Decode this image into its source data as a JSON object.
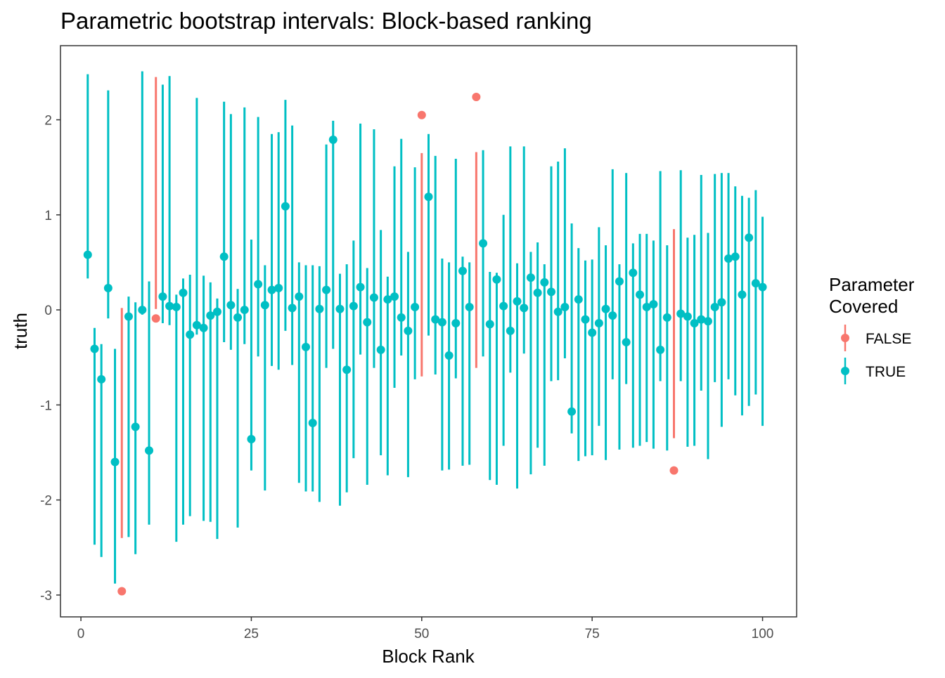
{
  "chart_data": {
    "type": "scatter",
    "title": "Parametric bootstrap intervals: Block-based ranking",
    "xlabel": "Block Rank",
    "ylabel": "truth",
    "xlim": [
      -3,
      105
    ],
    "ylim": [
      -3.23,
      2.78
    ],
    "x_ticks": [
      0,
      25,
      50,
      75,
      100
    ],
    "x_tick_labels": [
      "0",
      "25",
      "50",
      "75",
      "100"
    ],
    "y_ticks": [
      -3,
      -2,
      -1,
      0,
      1,
      2
    ],
    "y_tick_labels": [
      "-3",
      "-2",
      "-1",
      "0",
      "1",
      "2"
    ],
    "grid": false,
    "legend": {
      "title_lines": [
        "Parameter",
        "Covered"
      ],
      "placement": "right",
      "entries": [
        {
          "label": "FALSE",
          "color": "#F8766D"
        },
        {
          "label": "TRUE",
          "color": "#00BFC4"
        }
      ]
    },
    "uncovered_ranks": [
      6,
      11,
      50,
      58,
      87
    ],
    "truth": [
      0.58,
      -0.41,
      -0.73,
      0.23,
      -1.6,
      -2.96,
      -0.07,
      -1.23,
      0.0,
      -1.48,
      -0.09,
      0.14,
      0.04,
      0.03,
      0.18,
      -0.26,
      -0.16,
      -0.19,
      -0.06,
      -0.02,
      0.56,
      0.05,
      -0.08,
      0.0,
      -1.36,
      0.27,
      0.05,
      0.21,
      0.23,
      1.09,
      0.02,
      0.14,
      -0.39,
      -1.19,
      0.01,
      0.21,
      1.79,
      0.01,
      -0.63,
      0.04,
      0.24,
      -0.13,
      0.13,
      -0.42,
      0.11,
      0.14,
      -0.08,
      -0.22,
      0.03,
      2.05,
      1.19,
      -0.1,
      -0.13,
      -0.48,
      -0.14,
      0.41,
      0.03,
      2.24,
      0.7,
      -0.15,
      0.32,
      0.04,
      -0.22,
      0.09,
      0.02,
      0.34,
      0.18,
      0.29,
      0.19,
      -0.02,
      0.03,
      -1.07,
      0.11,
      -0.1,
      -0.24,
      -0.14,
      0.01,
      -0.06,
      0.3,
      -0.34,
      0.39,
      0.16,
      0.03,
      0.06,
      -0.42,
      -0.08,
      -1.69,
      -0.04,
      -0.07,
      -0.14,
      -0.1,
      -0.12,
      0.03,
      0.08,
      0.54,
      0.56,
      0.16,
      0.76,
      0.28,
      0.24
    ],
    "lower": [
      0.33,
      -2.47,
      -2.6,
      -0.09,
      -2.88,
      -2.4,
      -2.39,
      -2.57,
      -0.05,
      -2.26,
      0.01,
      -0.14,
      -0.16,
      -2.44,
      -2.26,
      -2.17,
      -0.26,
      -2.22,
      -2.23,
      -2.41,
      -0.34,
      -0.42,
      -2.29,
      -0.36,
      -1.69,
      -0.49,
      -1.9,
      -0.59,
      -0.63,
      -0.22,
      -0.58,
      -1.82,
      -1.91,
      -1.91,
      -2.02,
      -0.61,
      -0.41,
      -2.06,
      -1.92,
      -1.56,
      -0.47,
      -1.84,
      -0.61,
      -1.53,
      -1.74,
      -0.82,
      -0.48,
      -1.76,
      -0.73,
      -0.7,
      -0.27,
      -0.68,
      -1.69,
      -1.68,
      -0.72,
      -1.64,
      -1.63,
      -0.61,
      -0.49,
      -1.79,
      -1.84,
      -1.43,
      -0.66,
      -1.88,
      -0.46,
      -1.73,
      -1.45,
      -1.64,
      -0.75,
      -0.74,
      -0.51,
      -1.3,
      -1.59,
      -1.54,
      -1.53,
      -1.22,
      -1.58,
      -0.73,
      -1.47,
      -0.78,
      -1.45,
      -1.43,
      -1.39,
      -1.46,
      -0.75,
      -1.48,
      -1.35,
      -0.75,
      -1.44,
      -1.43,
      -0.85,
      -1.57,
      -0.76,
      -1.23,
      -0.73,
      -0.9,
      -1.11,
      -1.01,
      -0.89,
      -1.22
    ],
    "upper": [
      2.48,
      -0.19,
      -0.36,
      2.31,
      -0.41,
      0.02,
      0.14,
      0.08,
      2.51,
      0.3,
      2.45,
      2.37,
      2.46,
      0.16,
      0.33,
      0.37,
      2.23,
      0.36,
      0.29,
      0.12,
      2.19,
      2.06,
      0.22,
      2.13,
      0.74,
      2.03,
      0.47,
      1.85,
      1.87,
      2.21,
      1.94,
      0.5,
      0.47,
      0.47,
      0.46,
      1.74,
      1.99,
      0.38,
      0.48,
      0.73,
      1.96,
      0.44,
      1.9,
      0.84,
      0.35,
      1.51,
      1.8,
      0.61,
      1.5,
      1.65,
      1.85,
      1.62,
      0.54,
      0.5,
      1.59,
      0.56,
      0.5,
      1.66,
      1.68,
      0.4,
      0.39,
      1.0,
      1.72,
      0.49,
      1.72,
      0.61,
      0.71,
      0.48,
      1.51,
      1.56,
      1.7,
      0.91,
      0.65,
      0.52,
      0.53,
      0.87,
      0.68,
      1.48,
      0.48,
      1.44,
      0.7,
      0.8,
      0.8,
      0.73,
      1.46,
      0.68,
      0.85,
      1.47,
      0.76,
      0.79,
      1.42,
      0.81,
      1.43,
      1.44,
      1.44,
      1.3,
      1.2,
      1.18,
      1.26,
      0.98
    ]
  }
}
